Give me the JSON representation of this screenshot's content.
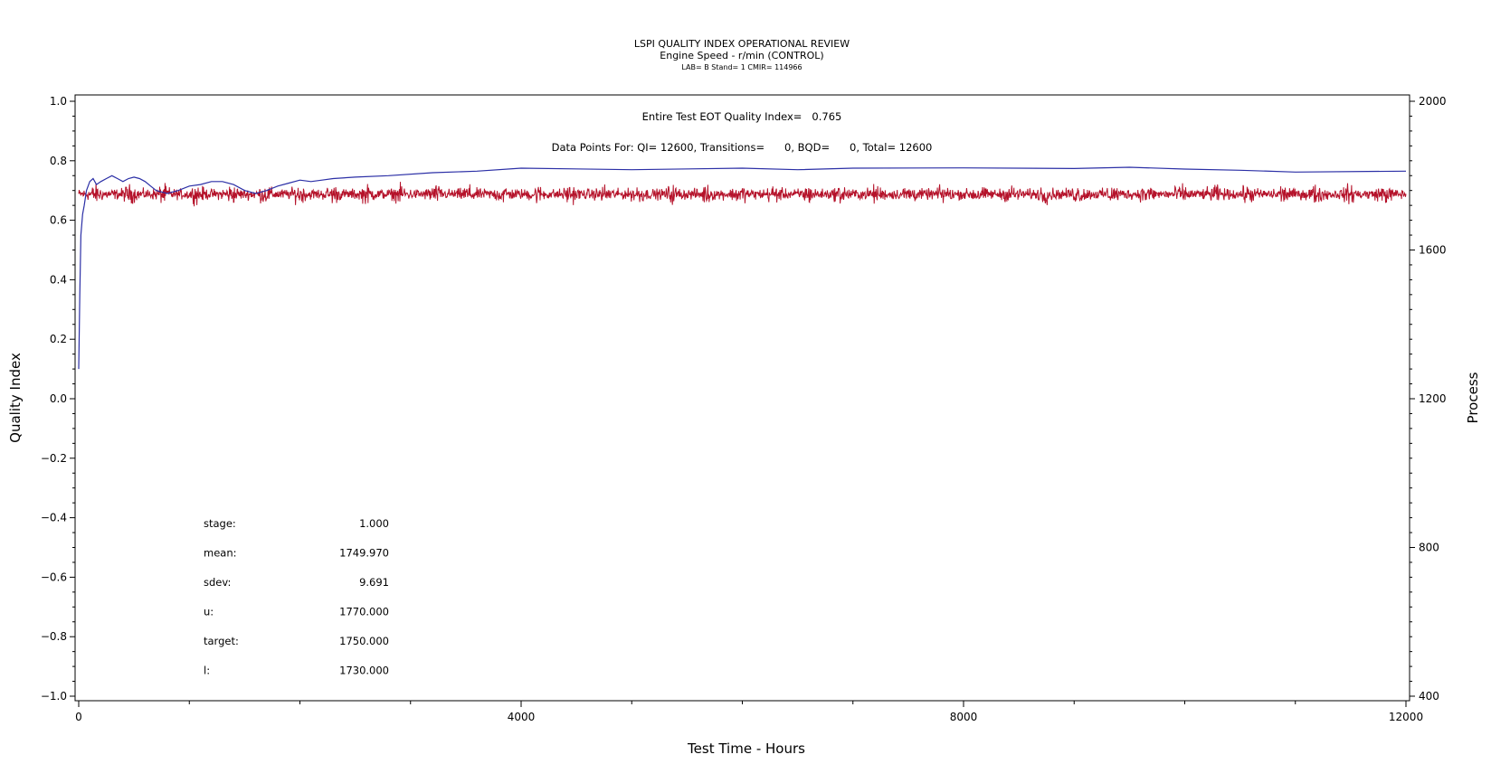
{
  "chart_data": {
    "type": "line",
    "title": "LSPI QUALITY INDEX OPERATIONAL REVIEW",
    "subtitle": "Engine Speed - r/min (CONTROL)",
    "subtitle2": "LAB= B Stand= 1 CMIR= 114966",
    "annotations": {
      "quality_index": "Entire Test EOT Quality Index=   0.765",
      "data_points": "Data Points For: QI= 12600, Transitions=      0, BQD=      0, Total= 12600"
    },
    "xlabel": "Test Time - Hours",
    "ylabel_left": "Quality Index",
    "ylabel_right": "Process",
    "xlim": [
      0,
      12000
    ],
    "ylim_left": [
      -1.0,
      1.0
    ],
    "ylim_right": [
      400,
      2000
    ],
    "x_ticks": [
      "0",
      "4000",
      "8000",
      "12000"
    ],
    "y_left_ticks": [
      "1.0",
      "0.8",
      "0.6",
      "0.4",
      "0.2",
      "0.0",
      "−0.2",
      "−0.4",
      "−0.6",
      "−0.8",
      "−1.0"
    ],
    "y_right_ticks": [
      "2000",
      "1600",
      "1200",
      "800",
      "400"
    ],
    "grid": false,
    "series": [
      {
        "axis": "left",
        "color": "#2b2fa6",
        "x": [
          0,
          10,
          20,
          35,
          50,
          70,
          100,
          130,
          160,
          200,
          250,
          300,
          350,
          400,
          450,
          500,
          550,
          600,
          650,
          700,
          750,
          800,
          900,
          1000,
          1100,
          1200,
          1300,
          1400,
          1500,
          1600,
          1700,
          1800,
          1900,
          2000,
          2100,
          2200,
          2300,
          2500,
          2800,
          3200,
          3600,
          4000,
          5000,
          6000,
          6500,
          7000,
          8000,
          9000,
          9500,
          10000,
          10500,
          11000,
          12000
        ],
        "y": [
          0.1,
          0.35,
          0.55,
          0.62,
          0.65,
          0.7,
          0.73,
          0.74,
          0.72,
          0.73,
          0.74,
          0.75,
          0.74,
          0.73,
          0.74,
          0.745,
          0.74,
          0.73,
          0.715,
          0.7,
          0.695,
          0.69,
          0.7,
          0.715,
          0.72,
          0.73,
          0.73,
          0.72,
          0.7,
          0.69,
          0.7,
          0.715,
          0.725,
          0.735,
          0.73,
          0.735,
          0.74,
          0.745,
          0.75,
          0.76,
          0.765,
          0.775,
          0.77,
          0.775,
          0.77,
          0.775,
          0.776,
          0.774,
          0.778,
          0.772,
          0.768,
          0.762,
          0.765
        ]
      },
      {
        "axis": "right",
        "color": "#b5122a",
        "x": [
          0,
          12000
        ],
        "y": [
          1749.97,
          1749.97
        ],
        "sdev": 9.691,
        "samples": 12600
      }
    ],
    "stats": [
      {
        "label": "stage:",
        "value": "1.000"
      },
      {
        "label": "mean:",
        "value": "1749.970"
      },
      {
        "label": "sdev:",
        "value": "9.691"
      },
      {
        "label": "u:",
        "value": "1770.000"
      },
      {
        "label": "target:",
        "value": "1750.000"
      },
      {
        "label": "l:",
        "value": "1730.000"
      }
    ]
  }
}
